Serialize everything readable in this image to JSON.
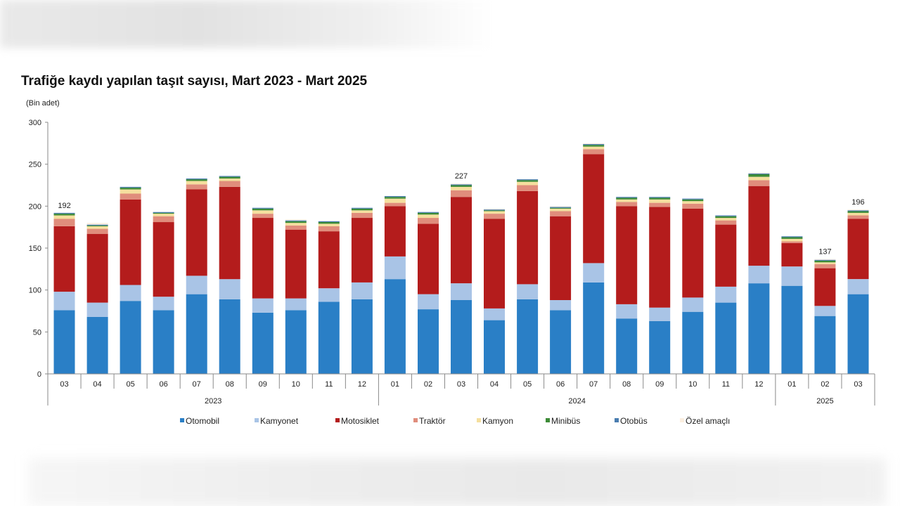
{
  "chart_data": {
    "type": "bar",
    "stacked": true,
    "title": "Trafiğe kaydı yapılan taşıt sayısı, Mart 2023 - Mart 2025",
    "unit_label": "(Bin adet)",
    "ylim": [
      0,
      300
    ],
    "yticks": [
      0,
      50,
      100,
      150,
      200,
      250,
      300
    ],
    "categories": [
      "03",
      "04",
      "05",
      "06",
      "07",
      "08",
      "09",
      "10",
      "11",
      "12",
      "01",
      "02",
      "03",
      "04",
      "05",
      "06",
      "07",
      "08",
      "09",
      "10",
      "11",
      "12",
      "01",
      "02",
      "03"
    ],
    "year_groups": [
      {
        "label": "2023",
        "count": 10
      },
      {
        "label": "2024",
        "count": 12
      },
      {
        "label": "2025",
        "count": 3
      }
    ],
    "series": [
      {
        "name": "Otomobil",
        "color": "#2a7fc6",
        "values": [
          76,
          68,
          87,
          76,
          95,
          89,
          73,
          76,
          86,
          89,
          113,
          77,
          88,
          64,
          89,
          76,
          109,
          66,
          63,
          74,
          85,
          108,
          105,
          69,
          95
        ]
      },
      {
        "name": "Kamyonet",
        "color": "#a9c4e6",
        "values": [
          22,
          17,
          19,
          16,
          22,
          24,
          17,
          14,
          16,
          20,
          27,
          18,
          20,
          14,
          18,
          12,
          23,
          17,
          16,
          17,
          19,
          21,
          23,
          12,
          18
        ]
      },
      {
        "name": "Motosiklet",
        "color": "#b41c1c",
        "values": [
          78,
          82,
          102,
          89,
          103,
          110,
          96,
          82,
          68,
          77,
          60,
          84,
          103,
          107,
          111,
          100,
          130,
          117,
          120,
          106,
          74,
          95,
          28,
          45,
          72
        ]
      },
      {
        "name": "Traktör",
        "color": "#e08d7c",
        "values": [
          9,
          6,
          7,
          7,
          6,
          7,
          5,
          5,
          6,
          6,
          4,
          7,
          8,
          6,
          7,
          6,
          6,
          5,
          5,
          6,
          5,
          7,
          2,
          5,
          4
        ]
      },
      {
        "name": "Kamyon",
        "color": "#f5df9e",
        "values": [
          4,
          3,
          5,
          3,
          4,
          3,
          4,
          3,
          3,
          3,
          5,
          4,
          4,
          3,
          4,
          3,
          3,
          3,
          4,
          3,
          3,
          4,
          3,
          2,
          3
        ]
      },
      {
        "name": "Minibüs",
        "color": "#3d8b37",
        "values": [
          2,
          1,
          2,
          1,
          2,
          2,
          2,
          2,
          2,
          2,
          2,
          2,
          2,
          1,
          2,
          1,
          2,
          2,
          2,
          2,
          2,
          3,
          2,
          2,
          2
        ]
      },
      {
        "name": "Otobüs",
        "color": "#4a7db0",
        "values": [
          1,
          1,
          1,
          1,
          1,
          1,
          1,
          1,
          1,
          1,
          1,
          1,
          1,
          1,
          1,
          1,
          1,
          1,
          1,
          1,
          1,
          1,
          1,
          1,
          1
        ]
      },
      {
        "name": "Özel amaçlı",
        "color": "#fbefe0",
        "values": [
          0,
          2,
          0,
          0,
          0,
          0,
          0,
          1,
          0,
          0,
          0,
          0,
          1,
          1,
          0,
          1,
          1,
          0,
          0,
          0,
          0,
          1,
          0,
          1,
          1
        ]
      }
    ],
    "data_labels": [
      {
        "index": 0,
        "text": "192"
      },
      {
        "index": 12,
        "text": "227"
      },
      {
        "index": 23,
        "text": "137"
      },
      {
        "index": 24,
        "text": "196"
      }
    ],
    "legend_position": "bottom",
    "grid": false
  }
}
